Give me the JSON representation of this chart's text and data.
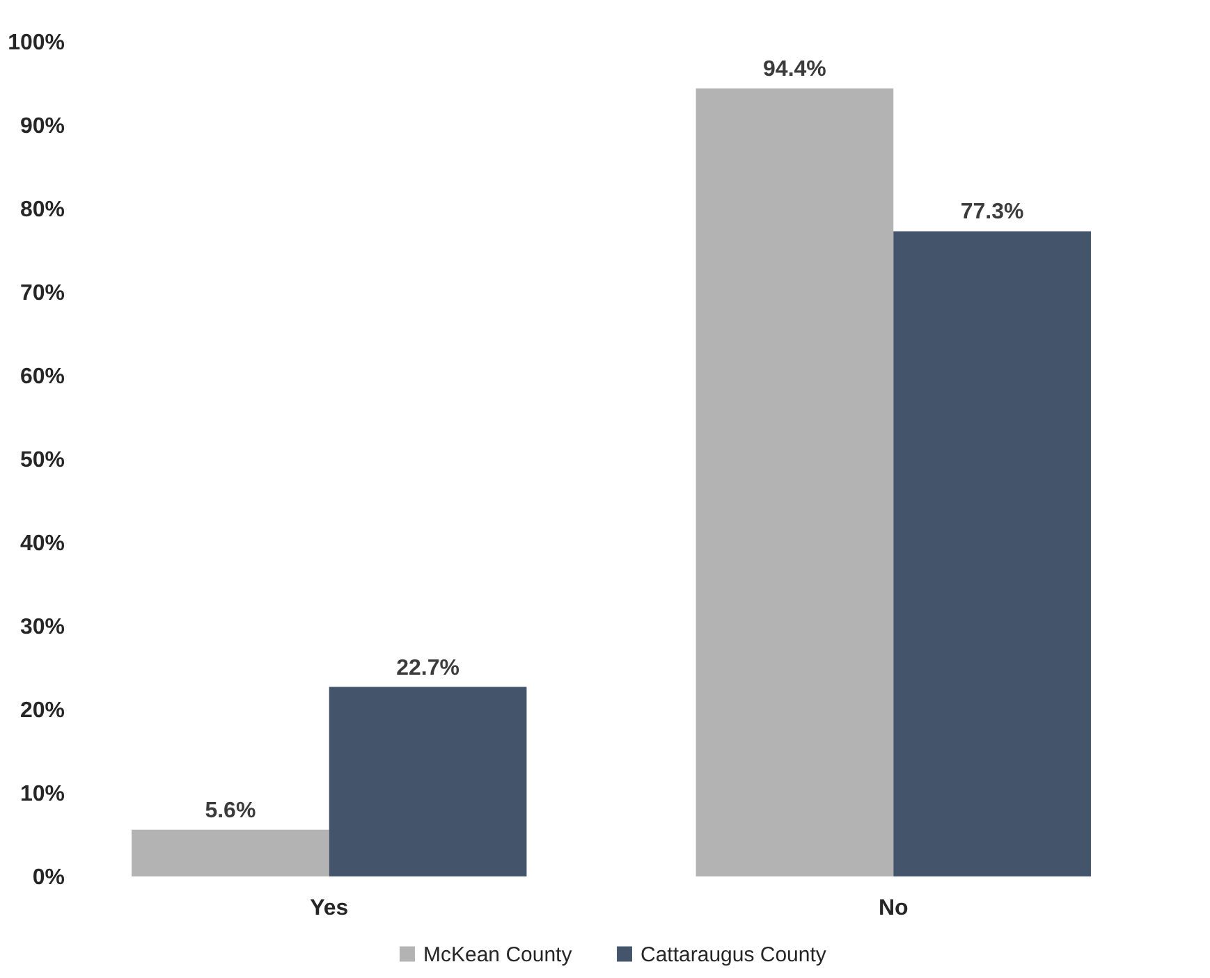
{
  "chart_data": {
    "type": "bar",
    "categories": [
      "Yes",
      "No"
    ],
    "series": [
      {
        "name": "McKean County",
        "color": "#b3b3b3",
        "values": [
          5.6,
          94.4
        ],
        "value_labels": [
          "5.6%",
          "94.4%"
        ]
      },
      {
        "name": "Cattaraugus County",
        "color": "#44546a",
        "values": [
          22.7,
          77.3
        ],
        "value_labels": [
          "22.7%",
          "77.3%"
        ]
      }
    ],
    "ylim": [
      0,
      100
    ],
    "yticks": [
      {
        "value": 0,
        "label": "0%"
      },
      {
        "value": 10,
        "label": "10%"
      },
      {
        "value": 20,
        "label": "20%"
      },
      {
        "value": 30,
        "label": "30%"
      },
      {
        "value": 40,
        "label": "40%"
      },
      {
        "value": 50,
        "label": "50%"
      },
      {
        "value": 60,
        "label": "60%"
      },
      {
        "value": 70,
        "label": "70%"
      },
      {
        "value": 80,
        "label": "80%"
      },
      {
        "value": 90,
        "label": "90%"
      },
      {
        "value": 100,
        "label": "100%"
      }
    ],
    "legend": "bottom",
    "grid": false
  }
}
